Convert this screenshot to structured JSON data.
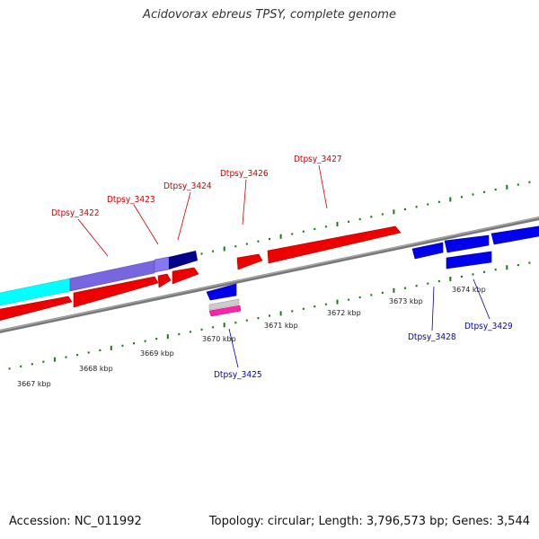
{
  "title": "Acidovorax ebreus TPSY, complete genome",
  "footer": {
    "accession": "Accession: NC_011992",
    "topology": "Topology: circular; Length: 3,796,573 bp; Genes: 3,544"
  },
  "colors": {
    "forward": "#ff0000",
    "reverse": "#0000ff",
    "forward_label": "#cc0000",
    "reverse_label": "#0000bb",
    "backbone": "#888888",
    "ticks": "#1a7a1a",
    "cyan_feature": "#00ffff",
    "purple_feature": "#7766dd",
    "navy_feature": "#000088",
    "pink_feature": "#ff22aa"
  },
  "scale": {
    "unit": "kbp",
    "ticks": [
      {
        "kbp": 3667,
        "label": "3667 kbp"
      },
      {
        "kbp": 3668,
        "label": "3668 kbp"
      },
      {
        "kbp": 3669,
        "label": "3669 kbp"
      },
      {
        "kbp": 3670,
        "label": "3670 kbp"
      },
      {
        "kbp": 3671,
        "label": "3671 kbp"
      },
      {
        "kbp": 3672,
        "label": "3672 kbp"
      },
      {
        "kbp": 3673,
        "label": "3673 kbp"
      },
      {
        "kbp": 3674,
        "label": "3674 kbp"
      }
    ]
  },
  "genes": [
    {
      "name": "Dtpsy_3422",
      "strand": "+"
    },
    {
      "name": "Dtpsy_3423",
      "strand": "+"
    },
    {
      "name": "Dtpsy_3424",
      "strand": "+"
    },
    {
      "name": "Dtpsy_3425",
      "strand": "-"
    },
    {
      "name": "Dtpsy_3426",
      "strand": "+"
    },
    {
      "name": "Dtpsy_3427",
      "strand": "+"
    },
    {
      "name": "Dtpsy_3428",
      "strand": "-"
    },
    {
      "name": "Dtpsy_3429",
      "strand": "-"
    }
  ]
}
